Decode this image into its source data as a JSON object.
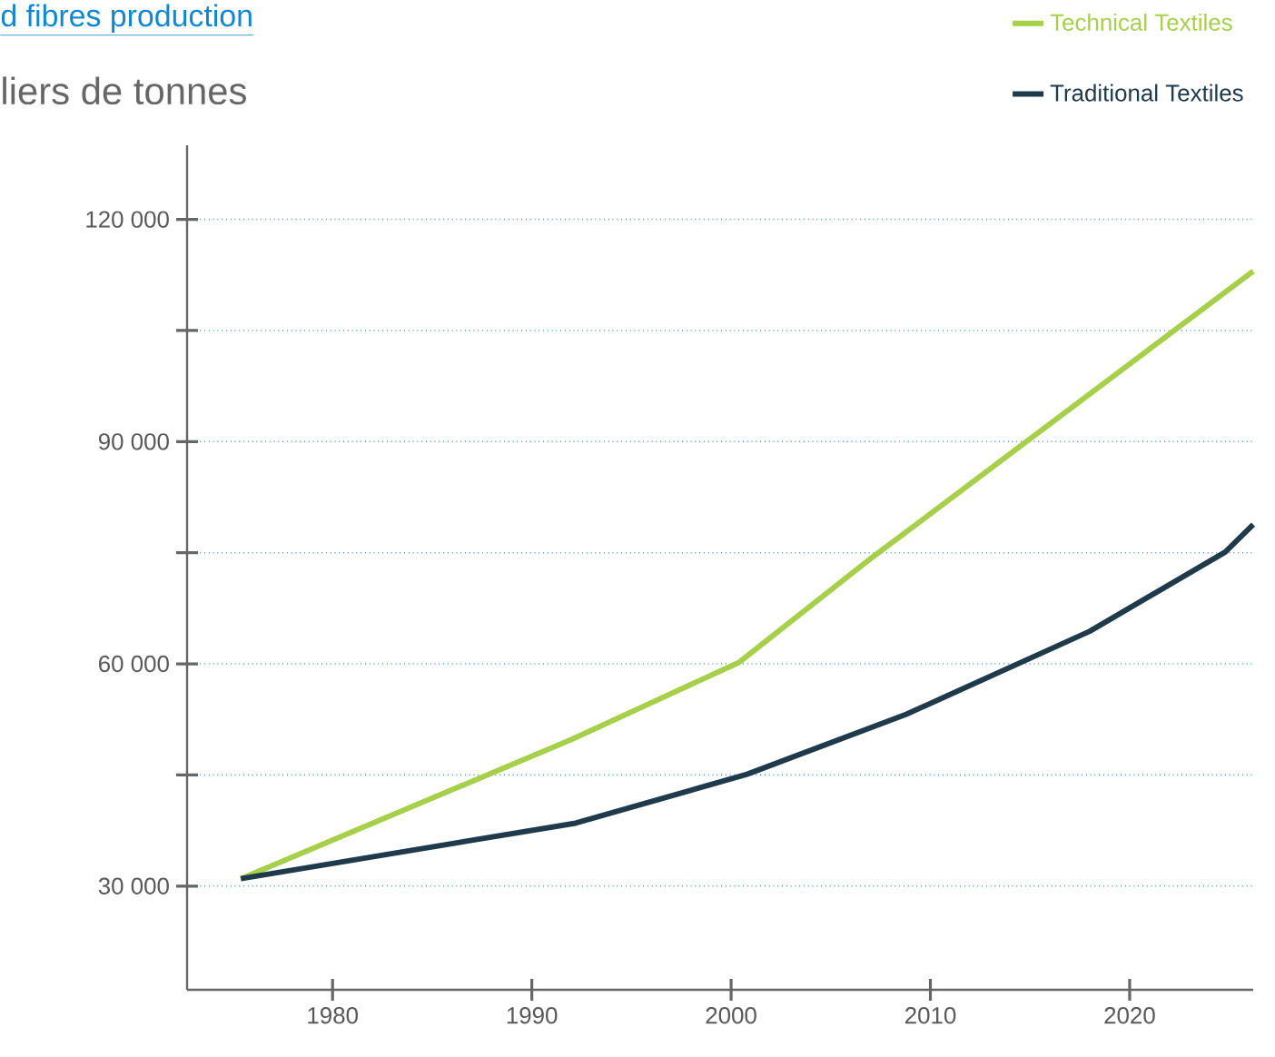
{
  "chart_data": {
    "type": "line",
    "title": "d fibres production",
    "subtitle": "liers de tonnes",
    "xlim": [
      1972.7,
      2026.2
    ],
    "xticks": [
      1980,
      1990,
      2000,
      2010,
      2020
    ],
    "ylim": [
      16000,
      130000
    ],
    "yticks": [
      {
        "value": 30000,
        "label": "30 000"
      },
      {
        "value": 45000,
        "label": null
      },
      {
        "value": 60000,
        "label": "60 000"
      },
      {
        "value": 75000,
        "label": null
      },
      {
        "value": 90000,
        "label": "90 000"
      },
      {
        "value": 105000,
        "label": null
      },
      {
        "value": 120000,
        "label": "120 000"
      }
    ],
    "grid": "y",
    "legend": "top right",
    "series": [
      {
        "name": "Technical Textiles",
        "color": "#a6cf4a",
        "x": [
          1975.4,
          1992,
          2000.4,
          2007,
          2026.2
        ],
        "values": [
          31000,
          49800,
          60200,
          74200,
          113000
        ]
      },
      {
        "name": "Traditional Textiles",
        "color": "#1f3a4a",
        "x": [
          1975.4,
          1992.2,
          2000.8,
          2008.8,
          2018,
          2024.8,
          2026.2
        ],
        "values": [
          31000,
          38500,
          45100,
          53200,
          64400,
          75100,
          78800
        ]
      }
    ]
  }
}
